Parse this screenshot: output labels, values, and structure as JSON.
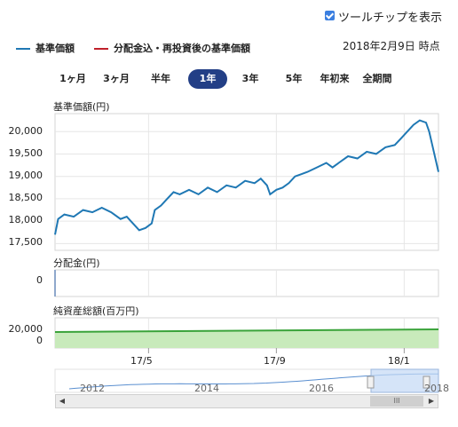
{
  "tooltip_toggle": {
    "label": "ツールチップを表示",
    "checked": true
  },
  "legend": {
    "nav_label": "基準価額",
    "nav_color": "#1f78b4",
    "reinvest_label": "分配金込・再投資後の基準価額",
    "reinvest_color": "#c0202a"
  },
  "as_of_date": "2018年2月9日 時点",
  "tabs": [
    {
      "label": "1ヶ月",
      "active": false
    },
    {
      "label": "3ヶ月",
      "active": false
    },
    {
      "label": "半年",
      "active": false
    },
    {
      "label": "1年",
      "active": true
    },
    {
      "label": "3年",
      "active": false
    },
    {
      "label": "5年",
      "active": false
    },
    {
      "label": "年初来",
      "active": false
    },
    {
      "label": "全期間",
      "active": false
    }
  ],
  "chart_data": [
    {
      "type": "line",
      "title": "基準価額(円)",
      "ylim": [
        17350,
        20400
      ],
      "yticks": [
        "20,000",
        "19,500",
        "19,000",
        "18,500",
        "18,000",
        "17,500"
      ],
      "ytick_values": [
        20000,
        19500,
        19000,
        18500,
        18000,
        17500
      ],
      "xticks": [
        "17/5",
        "17/9",
        "18/1"
      ],
      "xtick_months": [
        3.0,
        7.1,
        11.2
      ],
      "x_range_months": [
        0,
        12.3
      ],
      "color": "#1f78b4",
      "points": [
        [
          0.0,
          17700
        ],
        [
          0.1,
          18050
        ],
        [
          0.3,
          18150
        ],
        [
          0.6,
          18100
        ],
        [
          0.9,
          18250
        ],
        [
          1.2,
          18200
        ],
        [
          1.5,
          18300
        ],
        [
          1.8,
          18200
        ],
        [
          2.1,
          18050
        ],
        [
          2.3,
          18100
        ],
        [
          2.5,
          17950
        ],
        [
          2.7,
          17800
        ],
        [
          2.9,
          17850
        ],
        [
          3.1,
          17950
        ],
        [
          3.2,
          18250
        ],
        [
          3.4,
          18350
        ],
        [
          3.6,
          18500
        ],
        [
          3.8,
          18650
        ],
        [
          4.0,
          18600
        ],
        [
          4.3,
          18700
        ],
        [
          4.6,
          18600
        ],
        [
          4.9,
          18750
        ],
        [
          5.2,
          18650
        ],
        [
          5.5,
          18800
        ],
        [
          5.8,
          18750
        ],
        [
          6.1,
          18900
        ],
        [
          6.4,
          18850
        ],
        [
          6.6,
          18950
        ],
        [
          6.8,
          18800
        ],
        [
          6.9,
          18600
        ],
        [
          7.1,
          18700
        ],
        [
          7.3,
          18750
        ],
        [
          7.5,
          18850
        ],
        [
          7.7,
          19000
        ],
        [
          7.9,
          19050
        ],
        [
          8.1,
          19100
        ],
        [
          8.4,
          19200
        ],
        [
          8.7,
          19300
        ],
        [
          8.9,
          19200
        ],
        [
          9.1,
          19300
        ],
        [
          9.4,
          19450
        ],
        [
          9.7,
          19400
        ],
        [
          10.0,
          19550
        ],
        [
          10.3,
          19500
        ],
        [
          10.6,
          19650
        ],
        [
          10.9,
          19700
        ],
        [
          11.1,
          19850
        ],
        [
          11.3,
          20000
        ],
        [
          11.5,
          20150
        ],
        [
          11.7,
          20250
        ],
        [
          11.9,
          20200
        ],
        [
          12.0,
          20000
        ],
        [
          12.1,
          19700
        ],
        [
          12.2,
          19400
        ],
        [
          12.3,
          19100
        ]
      ]
    },
    {
      "type": "bar",
      "title": "分配金(円)",
      "yticks": [
        "0"
      ],
      "values": []
    },
    {
      "type": "area",
      "title": "純資産総額(百万円)",
      "yticks": [
        "20,000",
        "0"
      ],
      "color": "#3aa33a",
      "fill": "#c8eabb"
    }
  ],
  "navigator": {
    "year_labels": [
      "2012",
      "2014",
      "2016",
      "2018"
    ]
  },
  "scrollbar": {
    "left_arrow": "◀",
    "right_arrow": "▶",
    "grip": "III"
  }
}
